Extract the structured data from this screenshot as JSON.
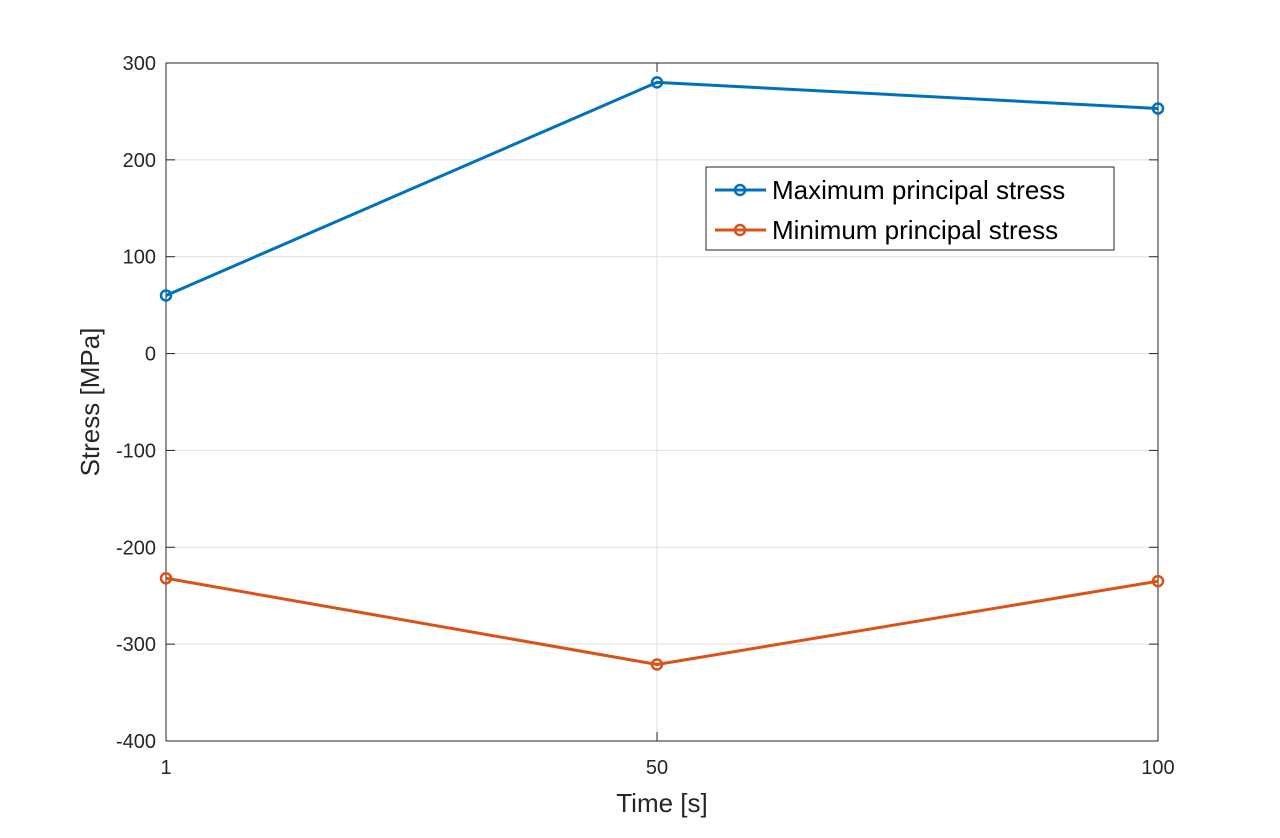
{
  "chart_data": {
    "type": "line",
    "title": "",
    "xlabel": "Time [s]",
    "ylabel": "Stress [MPa]",
    "x": [
      1,
      50,
      100
    ],
    "xlim": [
      1,
      100
    ],
    "ylim": [
      -400,
      300
    ],
    "xticks": [
      1,
      50,
      100
    ],
    "yticks": [
      -400,
      -300,
      -200,
      -100,
      0,
      100,
      200,
      300
    ],
    "grid": true,
    "legend_position": "top-right",
    "series": [
      {
        "name": "Maximum principal stress",
        "values": [
          60,
          280,
          253
        ],
        "color": "#0072BD",
        "marker": "circle"
      },
      {
        "name": "Minimum principal stress",
        "values": [
          -232,
          -321,
          -235
        ],
        "color": "#D95319",
        "marker": "circle"
      }
    ]
  }
}
